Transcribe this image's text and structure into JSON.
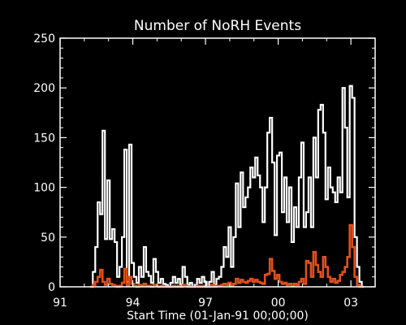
{
  "chart_data": {
    "type": "line",
    "title": "Number of NoRH Events",
    "xlabel": "Start Time (01-Jan-91 00;00;00)",
    "ylabel": "",
    "x_unit": "year",
    "xlim": [
      1991.0,
      2004.0
    ],
    "ylim": [
      0,
      250
    ],
    "x_tick_values": [
      1991,
      1994,
      1997,
      2000,
      2003
    ],
    "x_tick_labels": [
      "91",
      "94",
      "97",
      "00",
      "03"
    ],
    "y_tick_values": [
      0,
      50,
      100,
      150,
      200,
      250
    ],
    "y_tick_labels": [
      "0",
      "50",
      "100",
      "150",
      "200",
      "250"
    ],
    "grid": false,
    "legend": "none",
    "background_color": "#000000",
    "series": [
      {
        "color": "#ffffff",
        "step": true,
        "x": [
          1992.3,
          1992.4,
          1992.5,
          1992.6,
          1992.7,
          1992.8,
          1992.9,
          1993.0,
          1993.1,
          1993.2,
          1993.3,
          1993.4,
          1993.5,
          1993.6,
          1993.7,
          1993.8,
          1993.9,
          1994.0,
          1994.1,
          1994.2,
          1994.3,
          1994.4,
          1994.5,
          1994.6,
          1994.7,
          1994.8,
          1994.9,
          1995.0,
          1995.1,
          1995.2,
          1995.3,
          1995.4,
          1995.5,
          1995.6,
          1995.7,
          1995.8,
          1995.9,
          1996.0,
          1996.1,
          1996.2,
          1996.3,
          1996.4,
          1996.5,
          1996.6,
          1996.7,
          1996.8,
          1996.9,
          1997.0,
          1997.1,
          1997.2,
          1997.3,
          1997.4,
          1997.5,
          1997.6,
          1997.7,
          1997.8,
          1997.9,
          1998.0,
          1998.1,
          1998.2,
          1998.3,
          1998.4,
          1998.5,
          1998.6,
          1998.7,
          1998.8,
          1998.9,
          1999.0,
          1999.1,
          1999.2,
          1999.3,
          1999.4,
          1999.5,
          1999.6,
          1999.7,
          1999.8,
          1999.9,
          2000.0,
          2000.1,
          2000.2,
          2000.3,
          2000.4,
          2000.5,
          2000.6,
          2000.7,
          2000.8,
          2000.9,
          2001.0,
          2001.1,
          2001.2,
          2001.3,
          2001.4,
          2001.5,
          2001.6,
          2001.7,
          2001.8,
          2001.9,
          2002.0,
          2002.1,
          2002.2,
          2002.3,
          2002.4,
          2002.5,
          2002.6,
          2002.7,
          2002.8,
          2002.9,
          2003.0,
          2003.1,
          2003.2,
          2003.3,
          2003.4,
          2003.5
        ],
        "y": [
          0,
          15,
          40,
          85,
          73,
          157,
          48,
          107,
          48,
          58,
          45,
          10,
          20,
          50,
          138,
          5,
          143,
          24,
          10,
          4,
          20,
          10,
          40,
          15,
          11,
          4,
          28,
          15,
          4,
          8,
          3,
          2,
          0,
          4,
          10,
          4,
          8,
          2,
          20,
          10,
          2,
          4,
          0,
          2,
          8,
          4,
          10,
          5,
          0,
          5,
          15,
          2,
          8,
          10,
          20,
          40,
          30,
          60,
          20,
          50,
          104,
          60,
          115,
          80,
          90,
          100,
          120,
          110,
          130,
          112,
          100,
          65,
          100,
          155,
          170,
          125,
          52,
          132,
          135,
          75,
          110,
          65,
          100,
          45,
          80,
          60,
          110,
          145,
          60,
          75,
          110,
          60,
          150,
          110,
          178,
          183,
          155,
          88,
          120,
          100,
          95,
          85,
          110,
          95,
          200,
          160,
          90,
          202,
          190,
          50,
          20,
          5,
          0
        ]
      },
      {
        "color": "#e0501c",
        "step": true,
        "x": [
          1992.3,
          1992.4,
          1992.5,
          1992.6,
          1992.7,
          1992.8,
          1992.9,
          1993.0,
          1993.1,
          1993.2,
          1993.3,
          1993.4,
          1993.5,
          1993.6,
          1993.7,
          1993.8,
          1993.9,
          1994.0,
          1994.1,
          1994.2,
          1994.3,
          1994.4,
          1994.5,
          1994.6,
          1994.7,
          1994.8,
          1994.9,
          1995.0,
          1995.1,
          1995.2,
          1995.3,
          1995.4,
          1995.5,
          1995.6,
          1995.7,
          1995.8,
          1995.9,
          1996.0,
          1996.1,
          1996.2,
          1996.3,
          1996.4,
          1996.5,
          1996.6,
          1996.7,
          1996.8,
          1996.9,
          1997.0,
          1997.1,
          1997.2,
          1997.3,
          1997.4,
          1997.5,
          1997.6,
          1997.7,
          1997.8,
          1997.9,
          1998.0,
          1998.1,
          1998.2,
          1998.3,
          1998.4,
          1998.5,
          1998.6,
          1998.7,
          1998.8,
          1998.9,
          1999.0,
          1999.1,
          1999.2,
          1999.3,
          1999.4,
          1999.5,
          1999.6,
          1999.7,
          1999.8,
          1999.9,
          2000.0,
          2000.1,
          2000.2,
          2000.3,
          2000.4,
          2000.5,
          2000.6,
          2000.7,
          2000.8,
          2000.9,
          2001.0,
          2001.1,
          2001.2,
          2001.3,
          2001.4,
          2001.5,
          2001.6,
          2001.7,
          2001.8,
          2001.9,
          2002.0,
          2002.1,
          2002.2,
          2002.3,
          2002.4,
          2002.5,
          2002.6,
          2002.7,
          2002.8,
          2002.9,
          2003.0,
          2003.1,
          2003.2,
          2003.3,
          2003.4,
          2003.5
        ],
        "y": [
          0,
          2,
          5,
          10,
          17,
          5,
          2,
          8,
          3,
          2,
          1,
          0,
          1,
          4,
          18,
          1,
          10,
          3,
          1,
          0,
          2,
          1,
          3,
          1,
          1,
          0,
          2,
          1,
          0,
          1,
          0,
          0,
          0,
          0,
          1,
          0,
          1,
          0,
          2,
          1,
          0,
          0,
          0,
          0,
          1,
          0,
          1,
          0,
          0,
          0,
          2,
          0,
          1,
          1,
          2,
          3,
          2,
          4,
          1,
          3,
          8,
          4,
          7,
          5,
          4,
          6,
          8,
          5,
          7,
          5,
          4,
          3,
          12,
          13,
          28,
          16,
          8,
          12,
          5,
          3,
          4,
          2,
          3,
          1,
          3,
          2,
          5,
          8,
          3,
          26,
          24,
          10,
          35,
          22,
          15,
          10,
          30,
          20,
          10,
          5,
          8,
          4,
          6,
          12,
          15,
          20,
          30,
          62,
          40,
          10,
          2,
          0,
          0
        ]
      }
    ]
  }
}
